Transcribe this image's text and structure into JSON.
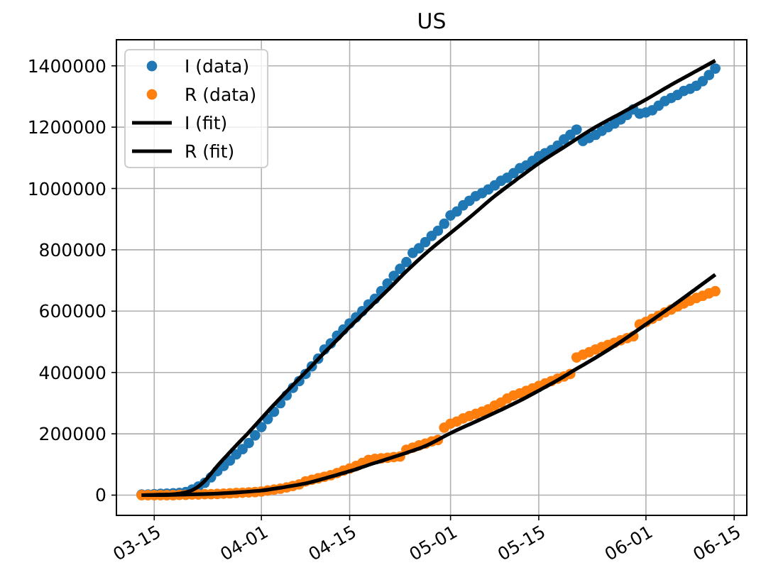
{
  "chart_data": {
    "type": "scatter",
    "title": "US",
    "x": [
      "--03-13",
      "--03-14",
      "--03-15",
      "--03-16",
      "--03-17",
      "--03-18",
      "--03-19",
      "--03-20",
      "--03-21",
      "--03-22",
      "--03-23",
      "--03-24",
      "--03-25",
      "--03-26",
      "--03-27",
      "--03-28",
      "--03-29",
      "--03-30",
      "--03-31",
      "--04-01",
      "--04-02",
      "--04-03",
      "--04-04",
      "--04-05",
      "--04-06",
      "--04-07",
      "--04-08",
      "--04-09",
      "--04-10",
      "--04-11",
      "--04-12",
      "--04-13",
      "--04-14",
      "--04-15",
      "--04-16",
      "--04-17",
      "--04-18",
      "--04-19",
      "--04-20",
      "--04-21",
      "--04-22",
      "--04-23",
      "--04-24",
      "--04-25",
      "--04-26",
      "--04-27",
      "--04-28",
      "--04-29",
      "--04-30",
      "--05-01",
      "--05-02",
      "--05-03",
      "--05-04",
      "--05-05",
      "--05-06",
      "--05-07",
      "--05-08",
      "--05-09",
      "--05-10",
      "--05-11",
      "--05-12",
      "--05-13",
      "--05-14",
      "--05-15",
      "--05-16",
      "--05-17",
      "--05-18",
      "--05-19",
      "--05-20",
      "--05-21",
      "--05-22",
      "--05-23",
      "--05-24",
      "--05-25",
      "--05-26",
      "--05-27",
      "--05-28",
      "--05-29",
      "--05-30",
      "--05-31",
      "--06-01",
      "--06-02",
      "--06-03",
      "--06-04",
      "--06-05",
      "--06-06",
      "--06-07",
      "--06-08",
      "--06-09",
      "--06-10",
      "--06-11",
      "--06-12"
    ],
    "series": [
      {
        "name": "I (data)",
        "color": "#1f77b4",
        "marker": "circle",
        "values": [
          2000,
          2000,
          3000,
          4000,
          5000,
          6000,
          7000,
          10000,
          18000,
          28000,
          40000,
          58000,
          78000,
          95000,
          113000,
          133000,
          150000,
          170000,
          195000,
          222000,
          248000,
          272000,
          300000,
          325000,
          350000,
          372000,
          395000,
          420000,
          445000,
          475000,
          495000,
          520000,
          540000,
          560000,
          580000,
          600000,
          622000,
          640000,
          665000,
          690000,
          715000,
          738000,
          760000,
          790000,
          805000,
          825000,
          845000,
          862000,
          885000,
          912000,
          925000,
          945000,
          960000,
          975000,
          985000,
          997000,
          1010000,
          1025000,
          1035000,
          1050000,
          1066000,
          1075000,
          1090000,
          1105000,
          1115000,
          1125000,
          1140000,
          1160000,
          1175000,
          1192000,
          1155000,
          1165000,
          1175000,
          1188000,
          1200000,
          1212000,
          1225000,
          1240000,
          1258000,
          1244000,
          1248000,
          1255000,
          1270000,
          1285000,
          1295000,
          1305000,
          1318000,
          1325000,
          1335000,
          1350000,
          1370000,
          1391000
        ]
      },
      {
        "name": "R (data)",
        "color": "#ff7f0e",
        "marker": "circle",
        "values": [
          0,
          0,
          0,
          0,
          0,
          0,
          1000,
          1000,
          2000,
          2000,
          3000,
          3000,
          4000,
          5000,
          6000,
          7000,
          8000,
          9000,
          10000,
          12000,
          15000,
          18000,
          21000,
          25000,
          30000,
          35000,
          45000,
          50000,
          55000,
          60000,
          65000,
          72000,
          80000,
          87000,
          95000,
          105000,
          115000,
          118000,
          120000,
          122000,
          124000,
          126000,
          148000,
          155000,
          162000,
          168000,
          175000,
          180000,
          220000,
          233000,
          240000,
          250000,
          258000,
          265000,
          272000,
          280000,
          292000,
          302000,
          315000,
          325000,
          332000,
          340000,
          348000,
          356000,
          364000,
          372000,
          380000,
          387000,
          395000,
          449000,
          458000,
          466000,
          475000,
          483000,
          490000,
          497000,
          505000,
          512000,
          518000,
          557000,
          565000,
          575000,
          585000,
          596000,
          605000,
          615000,
          625000,
          634000,
          643000,
          650000,
          658000,
          665000
        ]
      },
      {
        "name": "I (fit)",
        "type": "line",
        "color": "#000000",
        "x": [
          "--03-13",
          "--03-15",
          "--03-17",
          "--03-19",
          "--03-20",
          "--03-21",
          "--03-22",
          "--03-23",
          "--03-24",
          "--03-25",
          "--03-26",
          "--03-27",
          "--03-28",
          "--03-30",
          "--04-01",
          "--04-03",
          "--04-05",
          "--04-07",
          "--04-09",
          "--04-11",
          "--04-13",
          "--04-15",
          "--04-17",
          "--04-19",
          "--04-21",
          "--04-24",
          "--04-27",
          "--05-01",
          "--05-04",
          "--05-08",
          "--05-12",
          "--05-15",
          "--05-19",
          "--05-24",
          "--05-28",
          "--06-01",
          "--06-05",
          "--06-09",
          "--06-12"
        ],
        "values": [
          0,
          1000,
          2000,
          5000,
          9000,
          16000,
          28000,
          46000,
          70000,
          95000,
          118000,
          140000,
          162000,
          205000,
          250000,
          295000,
          338000,
          380000,
          422000,
          465000,
          506000,
          548000,
          588000,
          628000,
          668000,
          730000,
          787000,
          855000,
          905000,
          975000,
          1037000,
          1082000,
          1135000,
          1200000,
          1245000,
          1290000,
          1338000,
          1383000,
          1417000
        ]
      },
      {
        "name": "R (fit)",
        "type": "line",
        "color": "#000000",
        "x": [
          "--03-13",
          "--03-15",
          "--03-20",
          "--03-25",
          "--03-29",
          "--04-01",
          "--04-04",
          "--04-08",
          "--04-12",
          "--04-15",
          "--04-19",
          "--04-24",
          "--04-27",
          "--05-01",
          "--05-05",
          "--05-09",
          "--05-12",
          "--05-15",
          "--05-18",
          "--05-21",
          "--05-24",
          "--05-28",
          "--06-01",
          "--06-05",
          "--06-09",
          "--06-12"
        ],
        "values": [
          0,
          0,
          2000,
          5000,
          10000,
          15000,
          24000,
          38000,
          60000,
          78000,
          105000,
          138000,
          160000,
          202000,
          240000,
          278000,
          308000,
          341000,
          375000,
          412000,
          448000,
          500000,
          557000,
          614000,
          674000,
          719000
        ]
      }
    ],
    "xlim": [
      "--03-09",
      "--06-17"
    ],
    "xticks": [
      {
        "value": "--03-15",
        "label": "03-15"
      },
      {
        "value": "--04-01",
        "label": "04-01"
      },
      {
        "value": "--04-15",
        "label": "04-15"
      },
      {
        "value": "--05-01",
        "label": "05-01"
      },
      {
        "value": "--05-15",
        "label": "05-15"
      },
      {
        "value": "--06-01",
        "label": "06-01"
      },
      {
        "value": "--06-15",
        "label": "06-15"
      }
    ],
    "ylim": [
      -66000,
      1485000
    ],
    "yticks": [
      0,
      200000,
      400000,
      600000,
      800000,
      1000000,
      1200000,
      1400000
    ],
    "grid": true,
    "legend": "top left"
  }
}
